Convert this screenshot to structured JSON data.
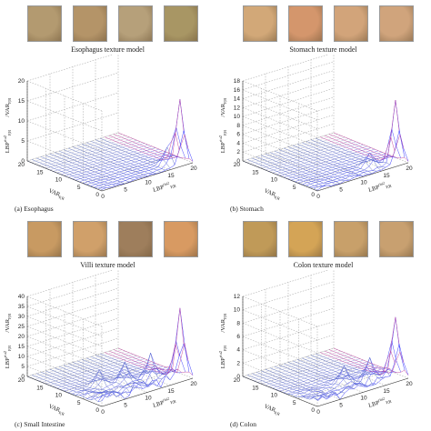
{
  "panels": [
    {
      "model_title": "Esophagus texture model",
      "caption": "(a)  Esophagus",
      "thumbs": [
        "#b39a70",
        "#b49468",
        "#b6a07a",
        "#a89664"
      ],
      "ylabel": "LBP_P,R^riu2/VAR_P,R",
      "xlabel": "VAR_P,R",
      "zlabel": "LBP_P,R^riu2"
    },
    {
      "model_title": "Stomach texture model",
      "caption": "(b)  Stomach",
      "thumbs": [
        "#d2a878",
        "#d4966c",
        "#d2a47a",
        "#d0a47c"
      ],
      "ylabel": "LBP_P,R^riu2/VAR_P,R",
      "xlabel": "VAR_P,R",
      "zlabel": "LBP_P,R^riu2"
    },
    {
      "model_title": "Villi texture model",
      "caption": "(c)  Small Intestine",
      "thumbs": [
        "#c89a62",
        "#d0a06a",
        "#9e7e5c",
        "#d89a62"
      ],
      "ylabel": "LBP_P,R^riu2/VAR_P,R",
      "xlabel": "VAR_P,R",
      "zlabel": "LBP_P,R^riu2"
    },
    {
      "model_title": "Colon texture model",
      "caption": "(d)  Colon",
      "thumbs": [
        "#c09a58",
        "#d4a456",
        "#c8a06a",
        "#c8a070"
      ],
      "ylabel": "LBP_P,R^riu2/VAR_P,R",
      "xlabel": "VAR_P,R",
      "zlabel": "LBP_P,R^riu2"
    }
  ],
  "chart_data": [
    {
      "type": "surface3d",
      "title": "Esophagus",
      "x_axis": "LBP_P,R^riu2",
      "x_range": [
        0,
        20
      ],
      "x_ticks": [
        0,
        5,
        10,
        15,
        20
      ],
      "y_axis": "VAR_P,R",
      "y_range": [
        0,
        20
      ],
      "y_ticks": [
        0,
        5,
        10,
        15,
        20
      ],
      "zlim": [
        0,
        20
      ],
      "z_ticks": [
        0,
        5,
        10,
        15,
        20
      ],
      "peaks": [
        {
          "x": 18,
          "y": 1,
          "z": 16
        },
        {
          "x": 16,
          "y": 2,
          "z": 4
        }
      ],
      "base": 0.2,
      "bumps": 0.3,
      "grid": true
    },
    {
      "type": "surface3d",
      "title": "Stomach",
      "x_axis": "LBP_P,R^riu2",
      "x_range": [
        0,
        20
      ],
      "x_ticks": [
        0,
        5,
        10,
        15,
        20
      ],
      "y_axis": "VAR_P,R",
      "y_range": [
        0,
        20
      ],
      "y_ticks": [
        0,
        5,
        10,
        15,
        20
      ],
      "zlim": [
        0,
        18
      ],
      "z_ticks": [
        0,
        2,
        4,
        6,
        8,
        10,
        12,
        14,
        16,
        18
      ],
      "peaks": [
        {
          "x": 18,
          "y": 1,
          "z": 14
        },
        {
          "x": 14,
          "y": 3,
          "z": 3
        }
      ],
      "base": 0.2,
      "bumps": 0.5,
      "grid": true
    },
    {
      "type": "surface3d",
      "title": "Small Intestine",
      "x_axis": "LBP_P,R^riu2",
      "x_range": [
        0,
        20
      ],
      "x_ticks": [
        0,
        5,
        10,
        15,
        20
      ],
      "y_axis": "VAR_P,R",
      "y_range": [
        0,
        20
      ],
      "y_ticks": [
        0,
        5,
        10,
        15,
        20
      ],
      "zlim": [
        0,
        40
      ],
      "z_ticks": [
        0,
        5,
        10,
        15,
        20,
        25,
        30,
        35,
        40
      ],
      "peaks": [
        {
          "x": 18,
          "y": 1,
          "z": 33
        },
        {
          "x": 14,
          "y": 4,
          "z": 12
        },
        {
          "x": 10,
          "y": 6,
          "z": 10
        },
        {
          "x": 6,
          "y": 8,
          "z": 8
        }
      ],
      "base": 2,
      "bumps": 5,
      "grid": true
    },
    {
      "type": "surface3d",
      "title": "Colon",
      "x_axis": "LBP_P,R^riu2",
      "x_range": [
        0,
        20
      ],
      "x_ticks": [
        0,
        5,
        10,
        15,
        20
      ],
      "y_axis": "VAR_P,R",
      "y_range": [
        0,
        20
      ],
      "y_ticks": [
        0,
        5,
        10,
        15,
        20
      ],
      "zlim": [
        0,
        12
      ],
      "z_ticks": [
        0,
        2,
        4,
        6,
        8,
        10,
        12
      ],
      "peaks": [
        {
          "x": 18,
          "y": 1,
          "z": 9
        },
        {
          "x": 14,
          "y": 3,
          "z": 3
        },
        {
          "x": 10,
          "y": 5,
          "z": 2.5
        }
      ],
      "base": 0.6,
      "bumps": 1.2,
      "grid": true
    }
  ]
}
